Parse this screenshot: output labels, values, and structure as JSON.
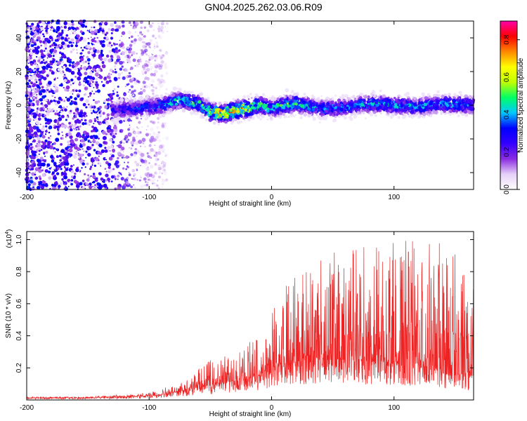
{
  "figure": {
    "title": "GN04.2025.262.03.06.R09"
  },
  "chart_data": [
    {
      "type": "heatmap",
      "title": "GN04.2025.262.03.06.R09",
      "xlabel": "Height of straight line (km)",
      "ylabel": "Frequency (Hz)",
      "xlim": [
        -200,
        165
      ],
      "ylim": [
        -50,
        50
      ],
      "x_ticks": [
        -200,
        -100,
        0,
        100
      ],
      "x_tick_labels": [
        "-200",
        "-100",
        "0",
        "100"
      ],
      "y_ticks": [
        -40,
        -20,
        0,
        20,
        40
      ],
      "y_tick_labels": [
        "-40",
        "-20",
        "0",
        "20",
        "40"
      ],
      "ridge": {
        "x": [
          -130,
          -110,
          -90,
          -75,
          -60,
          -50,
          -40,
          -30,
          -20,
          -10,
          0,
          10,
          20,
          40,
          60,
          80,
          100,
          120,
          140,
          165
        ],
        "frequency": [
          -3,
          -2,
          0,
          3,
          1,
          -4,
          -5,
          -3,
          -2,
          0,
          -2,
          0,
          1,
          -2,
          -1,
          1,
          0,
          -1,
          1,
          0
        ],
        "peak_amplitude": [
          0.35,
          0.4,
          0.45,
          0.55,
          0.6,
          0.7,
          0.85,
          0.9,
          0.8,
          0.6,
          0.5,
          0.6,
          0.55,
          0.45,
          0.45,
          0.5,
          0.5,
          0.45,
          0.5,
          0.45
        ]
      },
      "colorbar": {
        "label": "Normalized spectral amplitude",
        "range": [
          0,
          0.9
        ],
        "ticks": [
          0.0,
          0.2,
          0.4,
          0.6,
          0.8
        ],
        "tick_labels": [
          "0.0",
          "0.2",
          "0.4",
          "0.6",
          "0.8"
        ],
        "colors": [
          "#ffffff",
          "#e5d0f8",
          "#8a2be2",
          "#3300ff",
          "#0000ff",
          "#00c8ff",
          "#00ff66",
          "#bfff00",
          "#ffff00",
          "#ff8800",
          "#ff0000",
          "#ff00aa"
        ]
      }
    },
    {
      "type": "line",
      "xlabel": "Height of straight line (km)",
      "ylabel": "SNR (10 * v/v)",
      "y_scale_label": "(x10",
      "y_scale_exponent": "4",
      "y_scale_close": ")",
      "xlim": [
        -200,
        165
      ],
      "ylim": [
        0,
        1.05
      ],
      "x_ticks": [
        -200,
        -100,
        0,
        100
      ],
      "x_tick_labels": [
        "-200",
        "-100",
        "0",
        "100"
      ],
      "y_ticks": [
        0.2,
        0.4,
        0.6,
        0.8,
        1.0
      ],
      "y_tick_labels": [
        "0.2",
        "0.4",
        "0.6",
        "0.8",
        "1.0"
      ],
      "series": [
        {
          "name": "SNR",
          "color": "#ee2222",
          "x": [
            -200,
            -150,
            -110,
            -90,
            -70,
            -60,
            -50,
            -40,
            -30,
            -20,
            -10,
            0,
            10,
            20,
            40,
            60,
            80,
            100,
            120,
            140,
            165
          ],
          "baseline": [
            0.012,
            0.013,
            0.02,
            0.03,
            0.06,
            0.08,
            0.09,
            0.1,
            0.12,
            0.13,
            0.15,
            0.2,
            0.22,
            0.24,
            0.25,
            0.25,
            0.24,
            0.22,
            0.2,
            0.18,
            0.15
          ],
          "peak": [
            0.02,
            0.02,
            0.04,
            0.07,
            0.12,
            0.2,
            0.25,
            0.28,
            0.3,
            0.35,
            0.4,
            0.55,
            0.75,
            0.85,
            0.9,
            0.95,
            1.02,
            1.0,
            1.0,
            0.98,
            0.95
          ]
        }
      ]
    }
  ]
}
